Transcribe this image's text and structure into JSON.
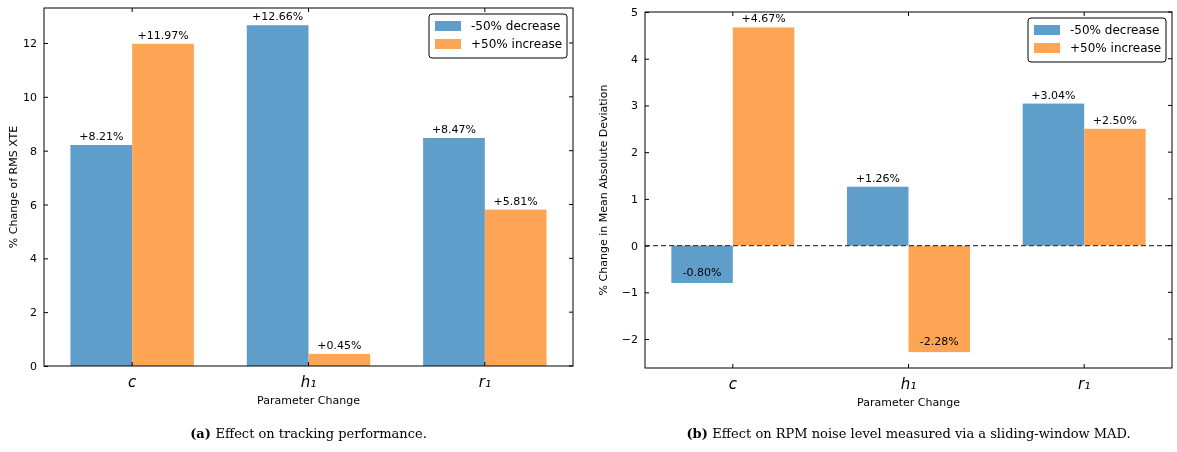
{
  "chart_data": [
    {
      "type": "bar",
      "categories": [
        "c",
        "h₁",
        "r₁"
      ],
      "xlabel": "Parameter Change",
      "ylabel": "% Change of RMS XTE",
      "ylim": [
        0,
        13.3
      ],
      "yticks": [
        0,
        2,
        4,
        6,
        8,
        10,
        12
      ],
      "legend": "top right",
      "series": [
        {
          "name": "-50% decrease",
          "color": "#5f9ecb",
          "values": [
            8.21,
            12.66,
            8.47
          ],
          "value_labels": [
            "+8.21%",
            "+12.66%",
            "+8.47%"
          ]
        },
        {
          "name": "+50% increase",
          "color": "#fea555",
          "values": [
            11.97,
            0.45,
            5.81
          ],
          "value_labels": [
            "+11.97%",
            "+0.45%",
            "+5.81%"
          ]
        }
      ],
      "annotations": [
        "(a) Effect on tracking performance."
      ]
    },
    {
      "type": "bar",
      "categories": [
        "c",
        "h₁",
        "r₁"
      ],
      "xlabel": "Parameter Change",
      "ylabel": "% Change in Mean Absolute Deviation",
      "ylim": [
        -2.62,
        5
      ],
      "yticks": [
        {
          "value": -2,
          "label": "−2"
        },
        {
          "value": -1,
          "label": "−1"
        },
        0,
        1,
        2,
        3,
        4,
        5
      ],
      "legend": "top right",
      "ref_lines": [
        {
          "axis": "y",
          "value": 0,
          "color": "#404040",
          "line_style": "dashed"
        }
      ],
      "series": [
        {
          "name": "-50% decrease",
          "color": "#5f9ecb",
          "values": [
            -0.8,
            1.26,
            3.04
          ],
          "value_labels": [
            "-0.80%",
            "+1.26%",
            "+3.04%"
          ]
        },
        {
          "name": "+50% increase",
          "color": "#fea555",
          "values": [
            4.67,
            -2.28,
            2.5
          ],
          "value_labels": [
            "+4.67%",
            "-2.28%",
            "+2.50%"
          ]
        }
      ],
      "annotations": [
        "(b) Effect on RPM noise level measured via a sliding-window MAD."
      ]
    }
  ]
}
